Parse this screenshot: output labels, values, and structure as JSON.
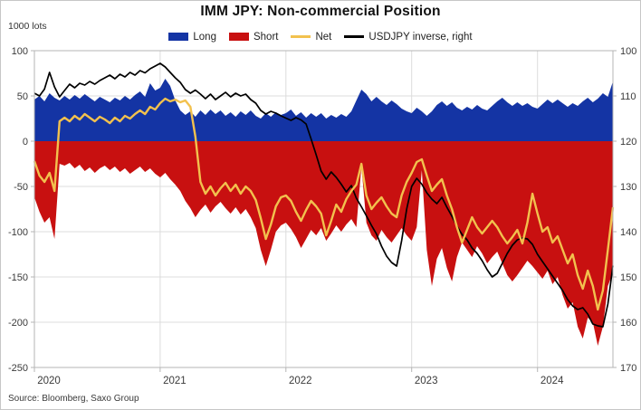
{
  "header": {
    "title": "IMM JPY: Non-commercial Position",
    "units_label": "1000 lots",
    "source": "Source: Bloomberg, Saxo Group"
  },
  "colors": {
    "long": "#1434a4",
    "short": "#c81010",
    "net": "#f2c14e",
    "usdjpy": "#000000",
    "grid": "#dcdcdc",
    "axis": "#b5b5b5",
    "tick_text": "#3a3a3a"
  },
  "chart_data": {
    "type": "area",
    "x_start": 2020.0,
    "x_step": 0.04,
    "axes": {
      "x": {
        "min": 2020.0,
        "max": 2024.6,
        "ticks": [
          2020,
          2021,
          2022,
          2023,
          2024
        ]
      },
      "left": {
        "min": -250,
        "max": 100,
        "ticks": [
          100,
          50,
          0,
          -50,
          -100,
          -150,
          -200,
          -250
        ]
      },
      "right": {
        "min": 100,
        "max": 170,
        "inverted": true,
        "ticks": [
          100,
          110,
          120,
          130,
          140,
          150,
          160,
          170
        ]
      }
    },
    "series": [
      {
        "name": "Long",
        "type": "area",
        "axis": "left",
        "color": "#1434a4",
        "values": [
          46,
          50,
          44,
          53,
          48,
          45,
          50,
          46,
          51,
          47,
          52,
          48,
          44,
          49,
          46,
          43,
          48,
          45,
          50,
          46,
          51,
          55,
          49,
          64,
          56,
          59,
          69,
          61,
          45,
          34,
          29,
          33,
          27,
          34,
          29,
          35,
          30,
          34,
          28,
          32,
          27,
          33,
          29,
          34,
          28,
          25,
          31,
          27,
          32,
          29,
          31,
          35,
          28,
          32,
          26,
          31,
          27,
          31,
          25,
          29,
          26,
          30,
          27,
          33,
          45,
          57,
          52,
          44,
          49,
          44,
          40,
          45,
          41,
          36,
          33,
          31,
          37,
          33,
          28,
          33,
          40,
          44,
          39,
          43,
          37,
          34,
          38,
          35,
          40,
          36,
          34,
          39,
          44,
          48,
          43,
          39,
          43,
          39,
          42,
          38,
          36,
          41,
          46,
          42,
          46,
          42,
          38,
          42,
          39,
          44,
          48,
          43,
          47,
          53,
          49,
          66
        ]
      },
      {
        "name": "Short",
        "type": "area",
        "axis": "left",
        "color": "#c81010",
        "values": [
          -62,
          -78,
          -90,
          -84,
          -108,
          -25,
          -27,
          -24,
          -30,
          -26,
          -33,
          -29,
          -35,
          -30,
          -27,
          -32,
          -28,
          -34,
          -30,
          -36,
          -32,
          -28,
          -34,
          -30,
          -36,
          -40,
          -35,
          -42,
          -48,
          -55,
          -66,
          -74,
          -84,
          -76,
          -70,
          -79,
          -72,
          -67,
          -74,
          -80,
          -73,
          -81,
          -75,
          -84,
          -96,
          -120,
          -138,
          -120,
          -100,
          -93,
          -90,
          -97,
          -106,
          -118,
          -108,
          -98,
          -104,
          -96,
          -110,
          -102,
          -93,
          -100,
          -92,
          -86,
          -95,
          -28,
          -90,
          -104,
          -110,
          -98,
          -106,
          -112,
          -104,
          -96,
          -104,
          -110,
          -95,
          -32,
          -120,
          -160,
          -130,
          -118,
          -140,
          -155,
          -128,
          -112,
          -120,
          -128,
          -116,
          -124,
          -135,
          -128,
          -122,
          -135,
          -148,
          -155,
          -148,
          -140,
          -132,
          -138,
          -145,
          -152,
          -143,
          -158,
          -150,
          -170,
          -185,
          -178,
          -205,
          -218,
          -195,
          -200,
          -226,
          -205,
          -160,
          -145
        ]
      },
      {
        "name": "Net",
        "type": "line",
        "axis": "left",
        "color": "#f2c14e",
        "values": [
          -22,
          -38,
          -45,
          -35,
          -55,
          22,
          26,
          22,
          28,
          24,
          30,
          26,
          22,
          27,
          24,
          20,
          26,
          22,
          28,
          25,
          30,
          34,
          30,
          38,
          35,
          42,
          47,
          44,
          46,
          43,
          45,
          38,
          5,
          -45,
          -58,
          -50,
          -60,
          -52,
          -46,
          -55,
          -48,
          -58,
          -50,
          -55,
          -65,
          -85,
          -108,
          -92,
          -72,
          -62,
          -60,
          -66,
          -78,
          -88,
          -76,
          -66,
          -72,
          -80,
          -104,
          -88,
          -70,
          -78,
          -64,
          -55,
          -48,
          -25,
          -60,
          -75,
          -68,
          -62,
          -72,
          -80,
          -84,
          -60,
          -45,
          -35,
          -23,
          -20,
          -38,
          -55,
          -48,
          -42,
          -60,
          -75,
          -95,
          -112,
          -98,
          -84,
          -95,
          -102,
          -95,
          -88,
          -95,
          -105,
          -113,
          -106,
          -98,
          -113,
          -90,
          -58,
          -80,
          -100,
          -95,
          -112,
          -105,
          -120,
          -135,
          -125,
          -148,
          -163,
          -143,
          -160,
          -186,
          -165,
          -120,
          -73
        ]
      },
      {
        "name": "USDJPY inverse, right",
        "type": "line",
        "axis": "right",
        "color": "#000000",
        "values": [
          109.4,
          110.0,
          108.5,
          104.8,
          108.0,
          110.2,
          108.8,
          107.4,
          108.2,
          107.2,
          107.6,
          106.8,
          107.4,
          106.6,
          106.0,
          105.4,
          106.2,
          105.2,
          105.8,
          104.8,
          105.4,
          104.4,
          104.9,
          104.0,
          103.4,
          102.8,
          103.6,
          104.8,
          106.0,
          107.0,
          108.6,
          109.4,
          108.7,
          109.6,
          110.6,
          109.6,
          110.8,
          110.0,
          109.2,
          110.2,
          109.4,
          110.0,
          109.6,
          110.8,
          111.6,
          113.2,
          114.0,
          113.4,
          113.8,
          114.4,
          114.9,
          115.4,
          114.8,
          115.3,
          116.2,
          119.5,
          123.0,
          126.6,
          128.4,
          126.8,
          128.0,
          129.5,
          131.2,
          129.8,
          132.6,
          134.5,
          136.5,
          138.6,
          140.5,
          143.2,
          145.4,
          146.8,
          147.6,
          142.0,
          135.0,
          130.0,
          128.2,
          129.5,
          131.4,
          132.8,
          133.8,
          132.4,
          134.6,
          136.6,
          138.8,
          140.6,
          141.8,
          143.6,
          144.8,
          146.4,
          148.4,
          150.0,
          149.2,
          147.0,
          144.8,
          143.0,
          141.8,
          141.4,
          141.6,
          142.8,
          145.0,
          146.6,
          148.2,
          149.8,
          151.4,
          153.0,
          155.0,
          156.4,
          157.2,
          156.8,
          158.2,
          160.4,
          160.8,
          161.0,
          156.0,
          147.5
        ]
      }
    ]
  }
}
